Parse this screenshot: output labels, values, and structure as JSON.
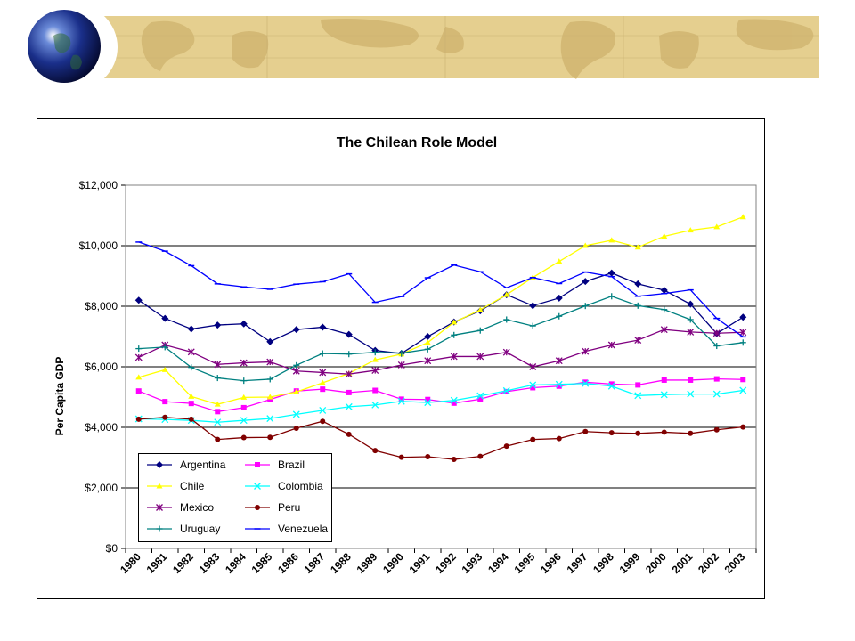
{
  "chart_data": {
    "type": "line",
    "title": "The Chilean Role Model",
    "xlabel": "",
    "ylabel": "Per Capita GDP",
    "ylim": [
      0,
      12000
    ],
    "yticks": [
      "$0",
      "$2,000",
      "$4,000",
      "$6,000",
      "$8,000",
      "$10,000",
      "$12,000"
    ],
    "x": [
      "1980",
      "1981",
      "1982",
      "1983",
      "1984",
      "1985",
      "1986",
      "1987",
      "1988",
      "1989",
      "1990",
      "1991",
      "1992",
      "1993",
      "1994",
      "1995",
      "1996",
      "1997",
      "1998",
      "1999",
      "2000",
      "2001",
      "2002",
      "2003"
    ],
    "grid": "horizontal",
    "legend": "bottom-left",
    "series": [
      {
        "name": "Argentina",
        "color": "#000080",
        "marker": "diamond",
        "values": [
          8200,
          7600,
          7250,
          7380,
          7420,
          6830,
          7230,
          7310,
          7070,
          6540,
          6440,
          7000,
          7480,
          7850,
          8380,
          8020,
          8270,
          8820,
          9100,
          8740,
          8530,
          8070,
          7100,
          7640
        ]
      },
      {
        "name": "Brazil",
        "color": "#ff00ff",
        "marker": "square",
        "values": [
          5200,
          4850,
          4790,
          4520,
          4650,
          4920,
          5200,
          5260,
          5150,
          5220,
          4930,
          4920,
          4800,
          4930,
          5180,
          5310,
          5360,
          5490,
          5430,
          5400,
          5560,
          5560,
          5600,
          5580
        ]
      },
      {
        "name": "Chile",
        "color": "#ffff00",
        "marker": "triangle",
        "values": [
          5650,
          5900,
          5020,
          4760,
          4990,
          5000,
          5170,
          5470,
          5780,
          6230,
          6420,
          6800,
          7470,
          7880,
          8380,
          8950,
          9480,
          10000,
          10180,
          9950,
          10310,
          10510,
          10620,
          10950
        ]
      },
      {
        "name": "Colombia",
        "color": "#00ffff",
        "marker": "x",
        "values": [
          4280,
          4260,
          4230,
          4170,
          4230,
          4290,
          4430,
          4560,
          4680,
          4740,
          4860,
          4820,
          4890,
          5040,
          5210,
          5400,
          5420,
          5450,
          5360,
          5050,
          5080,
          5100,
          5100,
          5220
        ]
      },
      {
        "name": "Mexico",
        "color": "#800080",
        "marker": "star",
        "values": [
          6310,
          6720,
          6490,
          6080,
          6130,
          6160,
          5860,
          5810,
          5760,
          5880,
          6060,
          6200,
          6340,
          6340,
          6480,
          6000,
          6200,
          6510,
          6720,
          6880,
          7230,
          7150,
          7110,
          7140
        ]
      },
      {
        "name": "Peru",
        "color": "#800000",
        "marker": "circle",
        "values": [
          4270,
          4330,
          4270,
          3600,
          3660,
          3670,
          3970,
          4200,
          3770,
          3230,
          3010,
          3030,
          2940,
          3040,
          3380,
          3600,
          3630,
          3860,
          3820,
          3800,
          3840,
          3800,
          3920,
          4010
        ]
      },
      {
        "name": "Uruguay",
        "color": "#008080",
        "marker": "plus",
        "values": [
          6600,
          6650,
          5980,
          5630,
          5540,
          5590,
          6050,
          6440,
          6420,
          6480,
          6450,
          6580,
          7050,
          7200,
          7560,
          7350,
          7670,
          8010,
          8330,
          8020,
          7890,
          7560,
          6690,
          6800
        ]
      },
      {
        "name": "Venezuela",
        "color": "#0000ff",
        "marker": "dash",
        "values": [
          10120,
          9820,
          9340,
          8740,
          8640,
          8560,
          8730,
          8810,
          9070,
          8130,
          8320,
          8940,
          9360,
          9140,
          8610,
          8950,
          8750,
          9130,
          8980,
          8330,
          8420,
          8540,
          7600,
          6990
        ]
      }
    ]
  }
}
